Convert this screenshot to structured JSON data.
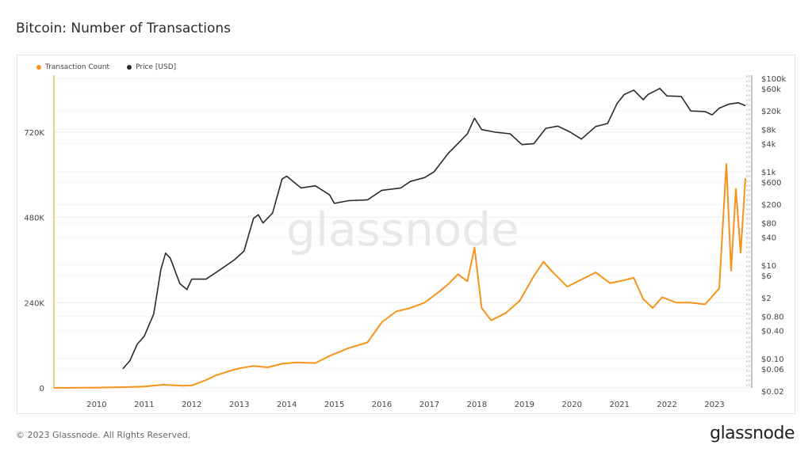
{
  "header": {
    "title": "Bitcoin: Number of Transactions"
  },
  "footer": {
    "copyright": "© 2023 Glassnode. All Rights Reserved.",
    "brand": "glassnode"
  },
  "watermark": "glassnode",
  "colors": {
    "transactions": "#f7931a",
    "price": "#2b2b2b"
  },
  "chart_data": {
    "type": "line",
    "legend": [
      {
        "name": "Transaction Count",
        "color": "#f7931a"
      },
      {
        "name": "Price [USD]",
        "color": "#2b2b2b"
      }
    ],
    "legend_position": "top-left",
    "x_ticks": [
      "2010",
      "2011",
      "2012",
      "2013",
      "2014",
      "2015",
      "2016",
      "2017",
      "2018",
      "2019",
      "2020",
      "2021",
      "2022",
      "2023"
    ],
    "xlim": [
      2009.1,
      2023.75
    ],
    "y_left": {
      "ticks": [
        "0",
        "240K",
        "480K",
        "720K"
      ],
      "tick_values": [
        0,
        240000,
        480000,
        720000
      ],
      "lim": [
        0,
        880000
      ]
    },
    "y_right": {
      "scale": "log",
      "ticks": [
        "$100k",
        "$60k",
        "$20k",
        "$8k",
        "$4k",
        "$1k",
        "$600",
        "$200",
        "$80",
        "$40",
        "$10",
        "$6",
        "$2",
        "$0.80",
        "$0.40",
        "$0.10",
        "$0.06",
        "$0.02"
      ],
      "tick_values": [
        100000,
        60000,
        20000,
        8000,
        4000,
        1000,
        600,
        200,
        80,
        40,
        10,
        6,
        2,
        0.8,
        0.4,
        0.1,
        0.06,
        0.02
      ],
      "lim": [
        0.02,
        100000
      ]
    },
    "grid": true,
    "series": [
      {
        "name": "Transaction Count",
        "axis": "left",
        "x": [
          2009.1,
          2010.0,
          2010.5,
          2011.0,
          2011.4,
          2011.8,
          2012.0,
          2012.3,
          2012.5,
          2012.8,
          2013.0,
          2013.3,
          2013.6,
          2013.9,
          2014.2,
          2014.6,
          2014.9,
          2015.3,
          2015.7,
          2016.0,
          2016.3,
          2016.6,
          2016.9,
          2017.2,
          2017.4,
          2017.6,
          2017.8,
          2017.95,
          2018.1,
          2018.3,
          2018.6,
          2018.9,
          2019.2,
          2019.4,
          2019.6,
          2019.9,
          2020.2,
          2020.5,
          2020.8,
          2021.0,
          2021.3,
          2021.5,
          2021.7,
          2021.9,
          2022.2,
          2022.5,
          2022.8,
          2023.0,
          2023.1,
          2023.25,
          2023.35,
          2023.45,
          2023.55,
          2023.65
        ],
        "y": [
          0,
          1000,
          2000,
          4000,
          9000,
          6000,
          7000,
          22000,
          35000,
          48000,
          55000,
          62000,
          58000,
          68000,
          72000,
          70000,
          90000,
          112000,
          128000,
          185000,
          215000,
          225000,
          240000,
          270000,
          292000,
          320000,
          300000,
          395000,
          225000,
          190000,
          210000,
          245000,
          315000,
          355000,
          325000,
          285000,
          305000,
          325000,
          295000,
          300000,
          310000,
          250000,
          225000,
          255000,
          240000,
          240000,
          235000,
          265000,
          280000,
          630000,
          330000,
          560000,
          380000,
          590000
        ]
      },
      {
        "name": "Price [USD]",
        "axis": "right",
        "x": [
          2010.55,
          2010.7,
          2010.85,
          2011.0,
          2011.2,
          2011.35,
          2011.45,
          2011.55,
          2011.75,
          2011.9,
          2012.0,
          2012.3,
          2012.6,
          2012.9,
          2013.1,
          2013.3,
          2013.4,
          2013.5,
          2013.7,
          2013.9,
          2014.0,
          2014.3,
          2014.6,
          2014.9,
          2015.0,
          2015.3,
          2015.7,
          2016.0,
          2016.4,
          2016.6,
          2016.9,
          2017.1,
          2017.4,
          2017.6,
          2017.8,
          2017.95,
          2018.1,
          2018.4,
          2018.7,
          2018.95,
          2019.2,
          2019.45,
          2019.7,
          2019.95,
          2020.2,
          2020.5,
          2020.75,
          2020.95,
          2021.1,
          2021.3,
          2021.5,
          2021.6,
          2021.85,
          2022.0,
          2022.3,
          2022.5,
          2022.8,
          2022.95,
          2023.1,
          2023.3,
          2023.5,
          2023.65
        ],
        "y": [
          0.06,
          0.09,
          0.2,
          0.3,
          0.9,
          8,
          18,
          14,
          4,
          3,
          5,
          5,
          8,
          13,
          20,
          100,
          120,
          80,
          130,
          700,
          800,
          450,
          500,
          320,
          210,
          240,
          250,
          400,
          450,
          620,
          750,
          1000,
          2500,
          4000,
          6500,
          14000,
          8000,
          7000,
          6500,
          3800,
          4000,
          8500,
          9500,
          7200,
          5000,
          9300,
          10800,
          29000,
          45000,
          56000,
          35000,
          45000,
          61000,
          42000,
          41000,
          20000,
          19500,
          16500,
          23000,
          28000,
          30000,
          26000
        ]
      }
    ]
  }
}
